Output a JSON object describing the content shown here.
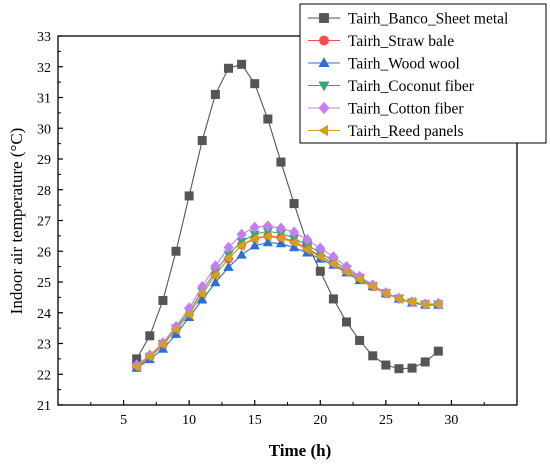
{
  "chart_data": {
    "type": "line",
    "title": "",
    "xlabel": "Time (h)",
    "ylabel": "Indoor air temperature (°C)",
    "xlim": [
      0,
      35
    ],
    "ylim": [
      21,
      33
    ],
    "xticks": [
      5,
      10,
      15,
      20,
      25,
      30
    ],
    "yticks": [
      21,
      22,
      23,
      24,
      25,
      26,
      27,
      28,
      29,
      30,
      31,
      32,
      33
    ],
    "grid": false,
    "legend_position": "top-right",
    "x": [
      6,
      7,
      8,
      9,
      10,
      11,
      12,
      13,
      14,
      15,
      16,
      17,
      18,
      19,
      20,
      21,
      22,
      23,
      24,
      25,
      26,
      27,
      28,
      29
    ],
    "series": [
      {
        "name": "Tairh_Banco_Sheet metal",
        "color": "#555555",
        "marker": "square",
        "values": [
          22.5,
          23.25,
          24.4,
          26.0,
          27.8,
          29.6,
          31.1,
          31.95,
          32.08,
          31.45,
          30.3,
          28.9,
          27.55,
          26.25,
          25.35,
          24.45,
          23.7,
          23.1,
          22.6,
          22.3,
          22.18,
          22.2,
          22.4,
          22.75
        ]
      },
      {
        "name": "Tairh_Straw bale",
        "color": "#f44c4c",
        "marker": "circle",
        "values": [
          22.22,
          22.55,
          22.95,
          23.45,
          23.95,
          24.6,
          25.25,
          25.75,
          26.2,
          26.42,
          26.5,
          26.45,
          26.32,
          26.1,
          25.85,
          25.6,
          25.35,
          25.1,
          24.85,
          24.62,
          24.45,
          24.35,
          24.28,
          24.28
        ]
      },
      {
        "name": "Tairh_Wood wool",
        "color": "#2b6fd6",
        "marker": "triangle-up",
        "values": [
          22.2,
          22.48,
          22.82,
          23.3,
          23.85,
          24.42,
          24.98,
          25.48,
          25.88,
          26.18,
          26.28,
          26.25,
          26.12,
          25.95,
          25.75,
          25.55,
          25.3,
          25.05,
          24.85,
          24.62,
          24.45,
          24.32,
          24.25,
          24.25
        ]
      },
      {
        "name": "Tairh_Coconut fiber",
        "color": "#37a872",
        "marker": "triangle-down",
        "values": [
          22.25,
          22.58,
          23.0,
          23.5,
          24.05,
          24.7,
          25.35,
          25.9,
          26.32,
          26.55,
          26.65,
          26.58,
          26.42,
          26.2,
          25.95,
          25.68,
          25.42,
          25.15,
          24.88,
          24.65,
          24.47,
          24.35,
          24.28,
          24.28
        ]
      },
      {
        "name": "Tairh_Cotton fiber",
        "color": "#c77df2",
        "marker": "diamond",
        "values": [
          22.3,
          22.62,
          23.02,
          23.55,
          24.15,
          24.85,
          25.52,
          26.12,
          26.55,
          26.78,
          26.82,
          26.75,
          26.62,
          26.38,
          26.1,
          25.82,
          25.5,
          25.18,
          24.9,
          24.65,
          24.47,
          24.35,
          24.28,
          24.3
        ]
      },
      {
        "name": "Tairh_Reed panels",
        "color": "#d3a11b",
        "marker": "triangle-left",
        "values": [
          22.25,
          22.58,
          22.98,
          23.45,
          23.95,
          24.62,
          25.22,
          25.78,
          26.18,
          26.4,
          26.48,
          26.42,
          26.28,
          26.05,
          25.82,
          25.58,
          25.32,
          25.08,
          24.85,
          24.62,
          24.45,
          24.35,
          24.28,
          24.28
        ]
      }
    ]
  }
}
